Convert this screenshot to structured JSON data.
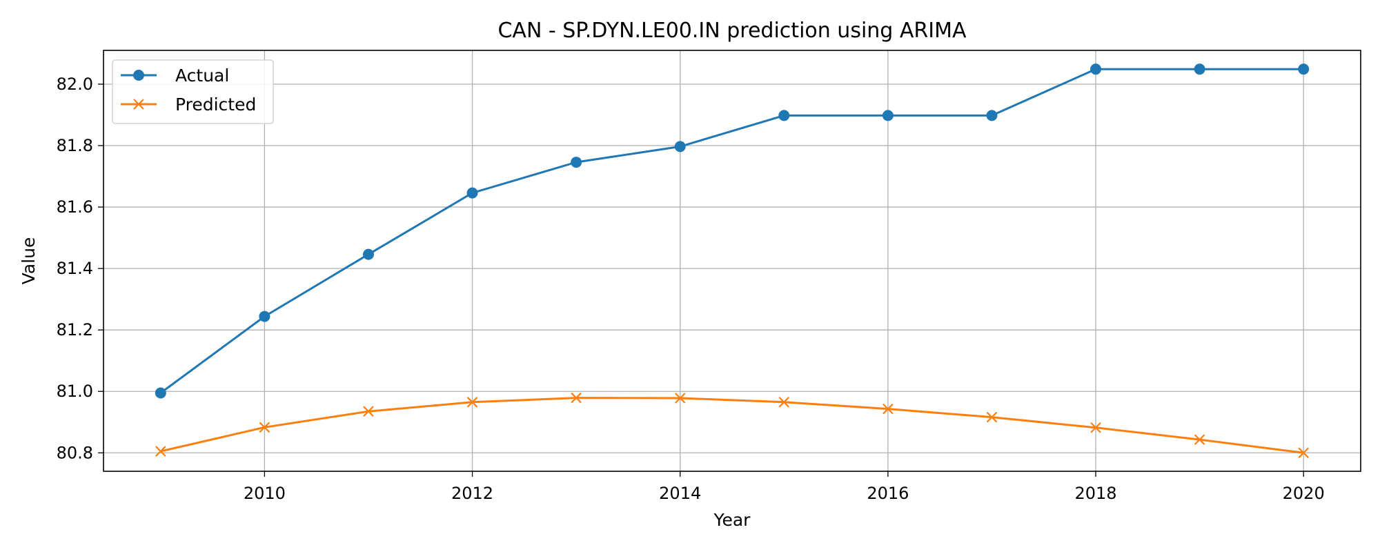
{
  "chart_data": {
    "type": "line",
    "title": "CAN - SP.DYN.LE00.IN prediction using ARIMA",
    "xlabel": "Year",
    "ylabel": "Value",
    "x": [
      2009,
      2010,
      2011,
      2012,
      2013,
      2014,
      2015,
      2016,
      2017,
      2018,
      2019,
      2020
    ],
    "xlim": [
      2008.45,
      2020.55
    ],
    "ylim": [
      80.74,
      82.11
    ],
    "xticks": [
      "2010",
      "2012",
      "2014",
      "2016",
      "2018",
      "2020"
    ],
    "yticks": [
      "80.8",
      "81.0",
      "81.2",
      "81.4",
      "81.6",
      "81.8",
      "82.0"
    ],
    "grid": true,
    "legend_position": "top-left",
    "series": [
      {
        "name": "Actual",
        "color": "#1f77b4",
        "marker": "circle",
        "values": [
          80.995,
          81.244,
          81.446,
          81.646,
          81.746,
          81.797,
          81.898,
          81.898,
          81.898,
          82.049,
          82.049,
          82.049
        ]
      },
      {
        "name": "Predicted",
        "color": "#ff7f0e",
        "marker": "x",
        "values": [
          80.805,
          80.883,
          80.935,
          80.965,
          80.979,
          80.978,
          80.965,
          80.943,
          80.916,
          80.882,
          80.843,
          80.8
        ]
      }
    ]
  }
}
